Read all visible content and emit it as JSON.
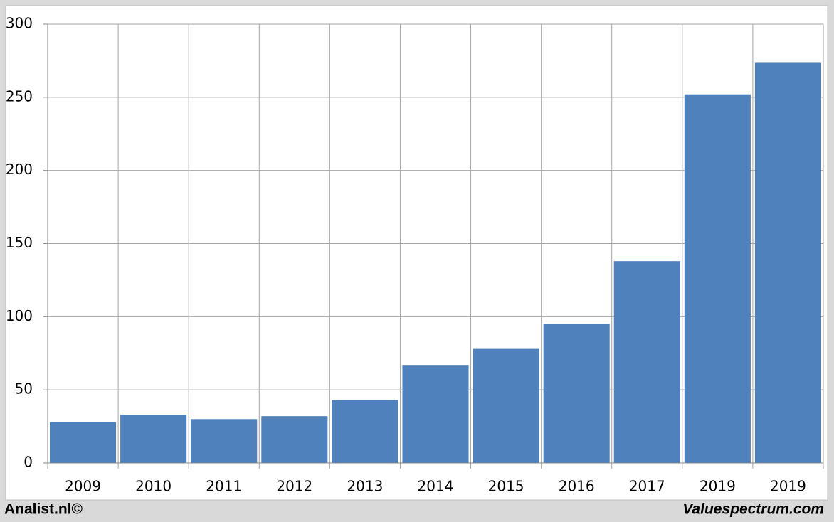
{
  "chart_data": {
    "type": "bar",
    "categories": [
      "2009",
      "2010",
      "2011",
      "2012",
      "2013",
      "2014",
      "2015",
      "2016",
      "2017",
      "2019",
      "2019"
    ],
    "values": [
      28,
      33,
      30,
      32,
      43,
      67,
      78,
      95,
      138,
      252,
      274
    ],
    "color": "#4f81bd",
    "ylim": [
      0,
      300
    ],
    "yticks": [
      0,
      50,
      100,
      150,
      200,
      250,
      300
    ],
    "grid": true,
    "source_left": "Analist.nl©",
    "source_right": "Valuespectrum.com"
  }
}
